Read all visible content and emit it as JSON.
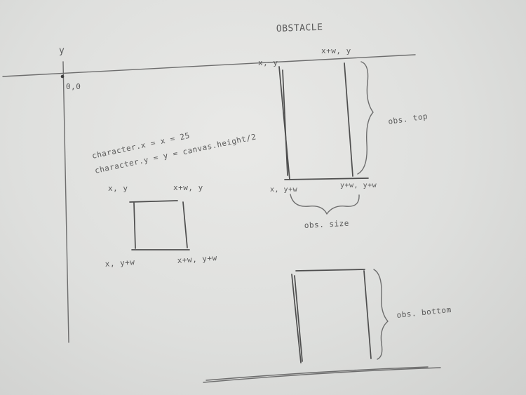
{
  "labels": {
    "title": "OBSTACLE",
    "y_axis": "y",
    "origin": "0,0",
    "character_x": "character.x = x = 25",
    "character_y": "character.y = y = canvas.height/2",
    "char_top_left": "x, y",
    "char_top_right": "x+w, y",
    "char_bottom_left": "x, y+w",
    "char_bottom_right": "x+w, y+w",
    "obs_top_left": "x, y",
    "obs_top_right": "x+w, y",
    "obs_bottom_left": "x, y+w",
    "obs_bottom_right": "y+w, y+w",
    "obs_top": "obs. top",
    "obs_size": "obs. size",
    "obs_bottom": "obs. bottom"
  }
}
